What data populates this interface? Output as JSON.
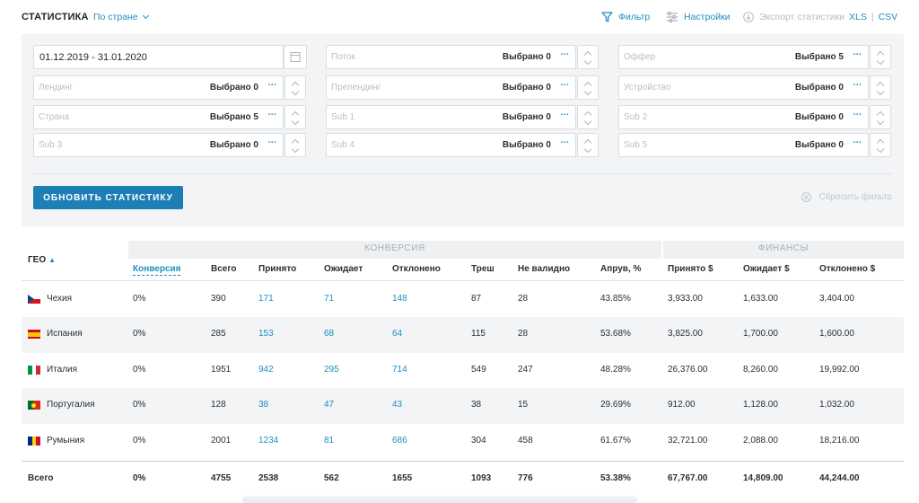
{
  "header": {
    "title": "СТАТИСТИКА",
    "view_select": "По стране",
    "filter_label": "Фильтр",
    "settings_label": "Настройки",
    "export_label": "Экспорт статистики",
    "export_xls": "XLS",
    "export_sep": "|",
    "export_csv": "CSV"
  },
  "filters": {
    "date_range": "01.12.2019 - 31.01.2020",
    "fields": [
      {
        "placeholder": "Поток",
        "selected": "Выбрано 0"
      },
      {
        "placeholder": "Оффер",
        "selected": "Выбрано 5"
      },
      {
        "placeholder": "Лендинг",
        "selected": "Выбрано 0"
      },
      {
        "placeholder": "Прелендинг",
        "selected": "Выбрано 0"
      },
      {
        "placeholder": "Устройство",
        "selected": "Выбрано 0"
      },
      {
        "placeholder": "Страна",
        "selected": "Выбрано 5"
      },
      {
        "placeholder": "Sub 1",
        "selected": "Выбрано 0"
      },
      {
        "placeholder": "Sub 2",
        "selected": "Выбрано 0"
      },
      {
        "placeholder": "Sub 3",
        "selected": "Выбрано 0"
      },
      {
        "placeholder": "Sub 4",
        "selected": "Выбрано 0"
      },
      {
        "placeholder": "Sub 5",
        "selected": "Выбрано 0"
      }
    ],
    "more_glyph": "···",
    "update_button": "ОБНОВИТЬ СТАТИСТИКУ",
    "reset_label": "Сбросить фильтр"
  },
  "table": {
    "group_conversion": "КОНВЕРСИЯ",
    "group_finance": "ФИНАНСЫ",
    "geo_header": "ГЕО",
    "sort_glyph": "▲",
    "columns": [
      "Конверсия",
      "Всего",
      "Принято",
      "Ожидает",
      "Отклонено",
      "Треш",
      "Не валидно",
      "Апрув, %",
      "Принято $",
      "Ожидает $",
      "Отклонено $"
    ],
    "rows": [
      {
        "country": "Чехия",
        "flag": "cz",
        "cells": [
          "0%",
          "390",
          "171",
          "71",
          "148",
          "87",
          "28",
          "43.85%",
          "3,933.00",
          "1,633.00",
          "3,404.00"
        ]
      },
      {
        "country": "Испания",
        "flag": "es",
        "cells": [
          "0%",
          "285",
          "153",
          "68",
          "64",
          "115",
          "28",
          "53.68%",
          "3,825.00",
          "1,700.00",
          "1,600.00"
        ]
      },
      {
        "country": "Италия",
        "flag": "it",
        "cells": [
          "0%",
          "1951",
          "942",
          "295",
          "714",
          "549",
          "247",
          "48.28%",
          "26,376.00",
          "8,260.00",
          "19,992.00"
        ]
      },
      {
        "country": "Португалия",
        "flag": "pt",
        "cells": [
          "0%",
          "128",
          "38",
          "47",
          "43",
          "38",
          "15",
          "29.69%",
          "912.00",
          "1,128.00",
          "1,032.00"
        ]
      },
      {
        "country": "Румыния",
        "flag": "ro",
        "cells": [
          "0%",
          "2001",
          "1234",
          "81",
          "686",
          "304",
          "458",
          "61.67%",
          "32,721.00",
          "2,088.00",
          "18,216.00"
        ]
      }
    ],
    "total": {
      "label": "Всего",
      "cells": [
        "0%",
        "4755",
        "2538",
        "562",
        "1655",
        "1093",
        "776",
        "53.38%",
        "67,767.00",
        "14,809.00",
        "44,244.00"
      ]
    }
  },
  "colors": {
    "accent": "#1f8fc0",
    "button": "#1d7fb5",
    "panel": "#f2f4f6"
  }
}
